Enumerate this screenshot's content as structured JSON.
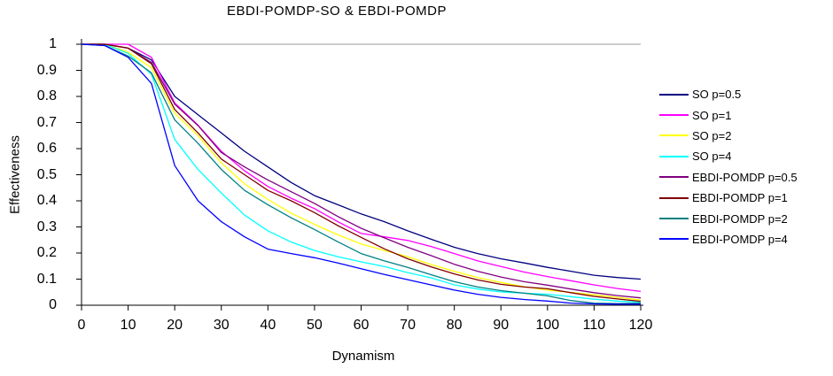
{
  "chart_data": {
    "type": "line",
    "title": "EBDI-POMDP-SO & EBDI-POMDP",
    "xlabel": "Dynamism",
    "ylabel": "Effectiveness",
    "xlim": [
      0,
      120
    ],
    "ylim": [
      0,
      1
    ],
    "xticks": [
      0,
      10,
      20,
      30,
      40,
      50,
      60,
      70,
      80,
      90,
      100,
      110,
      120
    ],
    "xtick_labels": [
      "0",
      "10",
      "20",
      "30",
      "40",
      "50",
      "60",
      "70",
      "80",
      "90",
      "100",
      "110",
      "120"
    ],
    "yticks": [
      0,
      0.1,
      0.2,
      0.3,
      0.4,
      0.5,
      0.6,
      0.7,
      0.8,
      0.9,
      1
    ],
    "ytick_labels": [
      "0",
      "0.1",
      "0.2",
      "0.3",
      "0.4",
      "0.5",
      "0.6",
      "0.7",
      "0.8",
      "0.9",
      "1"
    ],
    "grid": "horizontal gridline at y=1 only",
    "legend_position": "right",
    "x": [
      0,
      5,
      10,
      15,
      20,
      25,
      30,
      35,
      40,
      45,
      50,
      55,
      60,
      65,
      70,
      75,
      80,
      85,
      90,
      95,
      100,
      105,
      110,
      115,
      120
    ],
    "series": [
      {
        "name": "SO p=0.5",
        "color": "#000080",
        "values": [
          1,
          1,
          0.985,
          0.94,
          0.8,
          0.73,
          0.66,
          0.59,
          0.53,
          0.47,
          0.42,
          0.385,
          0.35,
          0.32,
          0.285,
          0.253,
          0.222,
          0.198,
          0.178,
          0.162,
          0.145,
          0.13,
          0.115,
          0.106,
          0.1
        ]
      },
      {
        "name": "SO p=1",
        "color": "#FF00FF",
        "values": [
          1,
          1,
          1,
          0.95,
          0.775,
          0.69,
          0.59,
          0.515,
          0.455,
          0.41,
          0.37,
          0.32,
          0.275,
          0.262,
          0.248,
          0.225,
          0.198,
          0.17,
          0.148,
          0.127,
          0.11,
          0.094,
          0.078,
          0.064,
          0.053
        ]
      },
      {
        "name": "SO p=2",
        "color": "#FFFF00",
        "values": [
          1,
          1,
          0.97,
          0.91,
          0.735,
          0.65,
          0.545,
          0.465,
          0.405,
          0.353,
          0.31,
          0.27,
          0.235,
          0.21,
          0.186,
          0.156,
          0.13,
          0.106,
          0.087,
          0.071,
          0.058,
          0.049,
          0.04,
          0.03,
          0.02
        ]
      },
      {
        "name": "SO p=4",
        "color": "#00FFFF",
        "values": [
          1,
          1,
          0.965,
          0.885,
          0.635,
          0.52,
          0.43,
          0.345,
          0.285,
          0.242,
          0.21,
          0.186,
          0.166,
          0.148,
          0.125,
          0.105,
          0.078,
          0.062,
          0.051,
          0.046,
          0.042,
          0.033,
          0.023,
          0.016,
          0.012
        ]
      },
      {
        "name": "EBDI-POMDP p=0.5",
        "color": "#800080",
        "values": [
          1,
          1,
          0.985,
          0.93,
          0.77,
          0.688,
          0.585,
          0.53,
          0.48,
          0.435,
          0.39,
          0.34,
          0.295,
          0.258,
          0.222,
          0.19,
          0.157,
          0.13,
          0.108,
          0.09,
          0.077,
          0.062,
          0.048,
          0.037,
          0.028
        ]
      },
      {
        "name": "EBDI-POMDP p=1",
        "color": "#800000",
        "values": [
          1,
          1,
          0.985,
          0.925,
          0.75,
          0.66,
          0.56,
          0.5,
          0.44,
          0.4,
          0.355,
          0.305,
          0.26,
          0.216,
          0.178,
          0.147,
          0.12,
          0.097,
          0.08,
          0.07,
          0.063,
          0.048,
          0.034,
          0.024,
          0.015
        ]
      },
      {
        "name": "EBDI-POMDP p=2",
        "color": "#008080",
        "values": [
          1,
          0.995,
          0.955,
          0.89,
          0.71,
          0.62,
          0.52,
          0.44,
          0.385,
          0.335,
          0.29,
          0.243,
          0.198,
          0.17,
          0.145,
          0.117,
          0.09,
          0.07,
          0.056,
          0.046,
          0.036,
          0.018,
          0.008,
          0.006,
          0.008
        ]
      },
      {
        "name": "EBDI-POMDP p=4",
        "color": "#0000FF",
        "values": [
          1,
          0.995,
          0.95,
          0.85,
          0.535,
          0.4,
          0.32,
          0.262,
          0.215,
          0.198,
          0.182,
          0.162,
          0.14,
          0.118,
          0.098,
          0.078,
          0.058,
          0.042,
          0.03,
          0.022,
          0.016,
          0.008,
          0.005,
          0.004,
          0.004
        ]
      }
    ]
  },
  "colors": {
    "axis": "#000000",
    "gridline": "#999999",
    "background": "#FFFFFF",
    "text": "#000000"
  }
}
